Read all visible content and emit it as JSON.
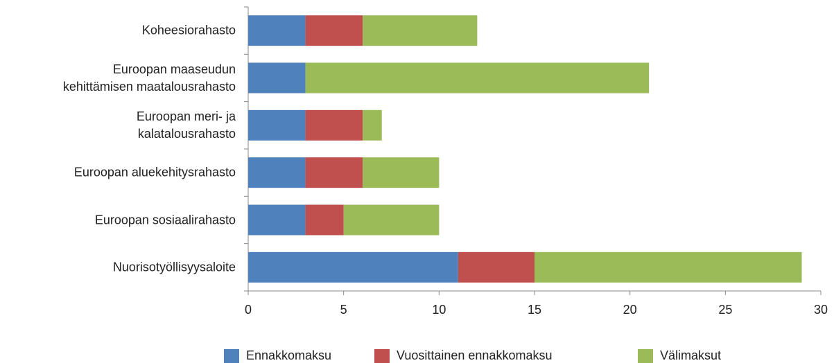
{
  "chart_data": {
    "type": "stacked-barh",
    "categories": [
      "Koheesiorahasto",
      "Euroopan maaseudun\nkehittämisen maatalousrahasto",
      "Euroopan meri- ja\nkalatalousrahasto",
      "Euroopan aluekehitysrahasto",
      "Euroopan sosiaalirahasto",
      "Nuorisotyöllisyysaloite"
    ],
    "series": [
      {
        "name": "Ennakkomaksu",
        "color": "#4f81bd",
        "values": [
          3,
          3,
          3,
          3,
          3,
          11
        ]
      },
      {
        "name": "Vuosittainen ennakkomaksu",
        "color": "#c0504d",
        "values": [
          3,
          0,
          3,
          3,
          2,
          4
        ]
      },
      {
        "name": "Välimaksut",
        "color": "#9bbb59",
        "values": [
          6,
          18,
          1,
          4,
          5,
          14
        ]
      }
    ],
    "xlim": [
      0,
      30
    ],
    "xticks": [
      0,
      5,
      10,
      15,
      20,
      25,
      30
    ],
    "legend": "bottom"
  }
}
